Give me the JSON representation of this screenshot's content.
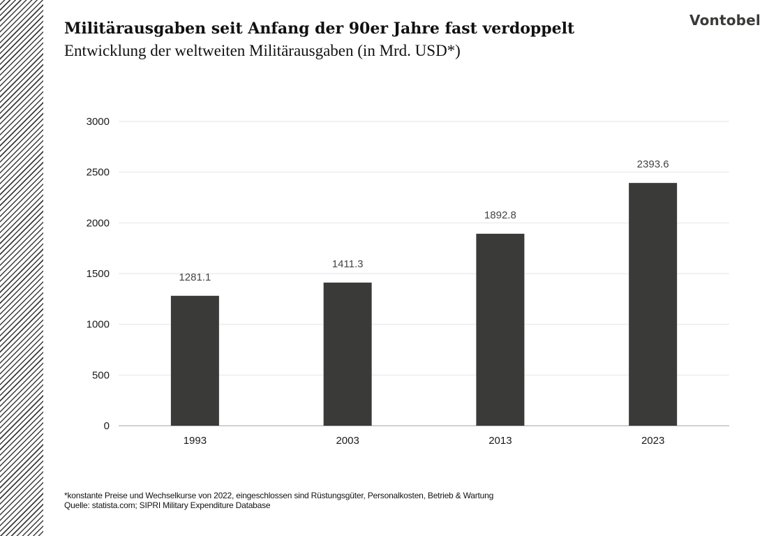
{
  "header": {
    "title": "Militärausgaben seit Anfang der 90er Jahre fast verdoppelt",
    "subtitle": "Entwicklung der weltweiten Militärausgaben (in Mrd. USD*)",
    "logo": "Vontobel"
  },
  "footer": {
    "note": "*konstante Preise und Wechselkurse von 2022, eingeschlossen sind Rüstungsgüter, Personalkosten, Betrieb & Wartung",
    "source": "Quelle: statista.com; SIPRI Military Expenditure Database"
  },
  "colors": {
    "bar": "#3a3a38",
    "grid": "#e6e6e6",
    "axis": "#d0d0d0",
    "text": "#1a1a1a",
    "label": "#444444"
  },
  "chart_data": {
    "type": "bar",
    "title": "Militärausgaben seit Anfang der 90er Jahre fast verdoppelt",
    "subtitle": "Entwicklung der weltweiten Militärausgaben (in Mrd. USD*)",
    "xlabel": "",
    "ylabel": "",
    "categories": [
      "1993",
      "2003",
      "2013",
      "2023"
    ],
    "values": [
      1281.1,
      1411.3,
      1892.8,
      2393.6
    ],
    "value_labels": [
      "1281.1",
      "1411.3",
      "1892.8",
      "2393.6"
    ],
    "ylim": [
      0,
      3000
    ],
    "yticks": [
      0,
      500,
      1000,
      1500,
      2000,
      2500,
      3000
    ],
    "grid": true,
    "legend": "none"
  }
}
